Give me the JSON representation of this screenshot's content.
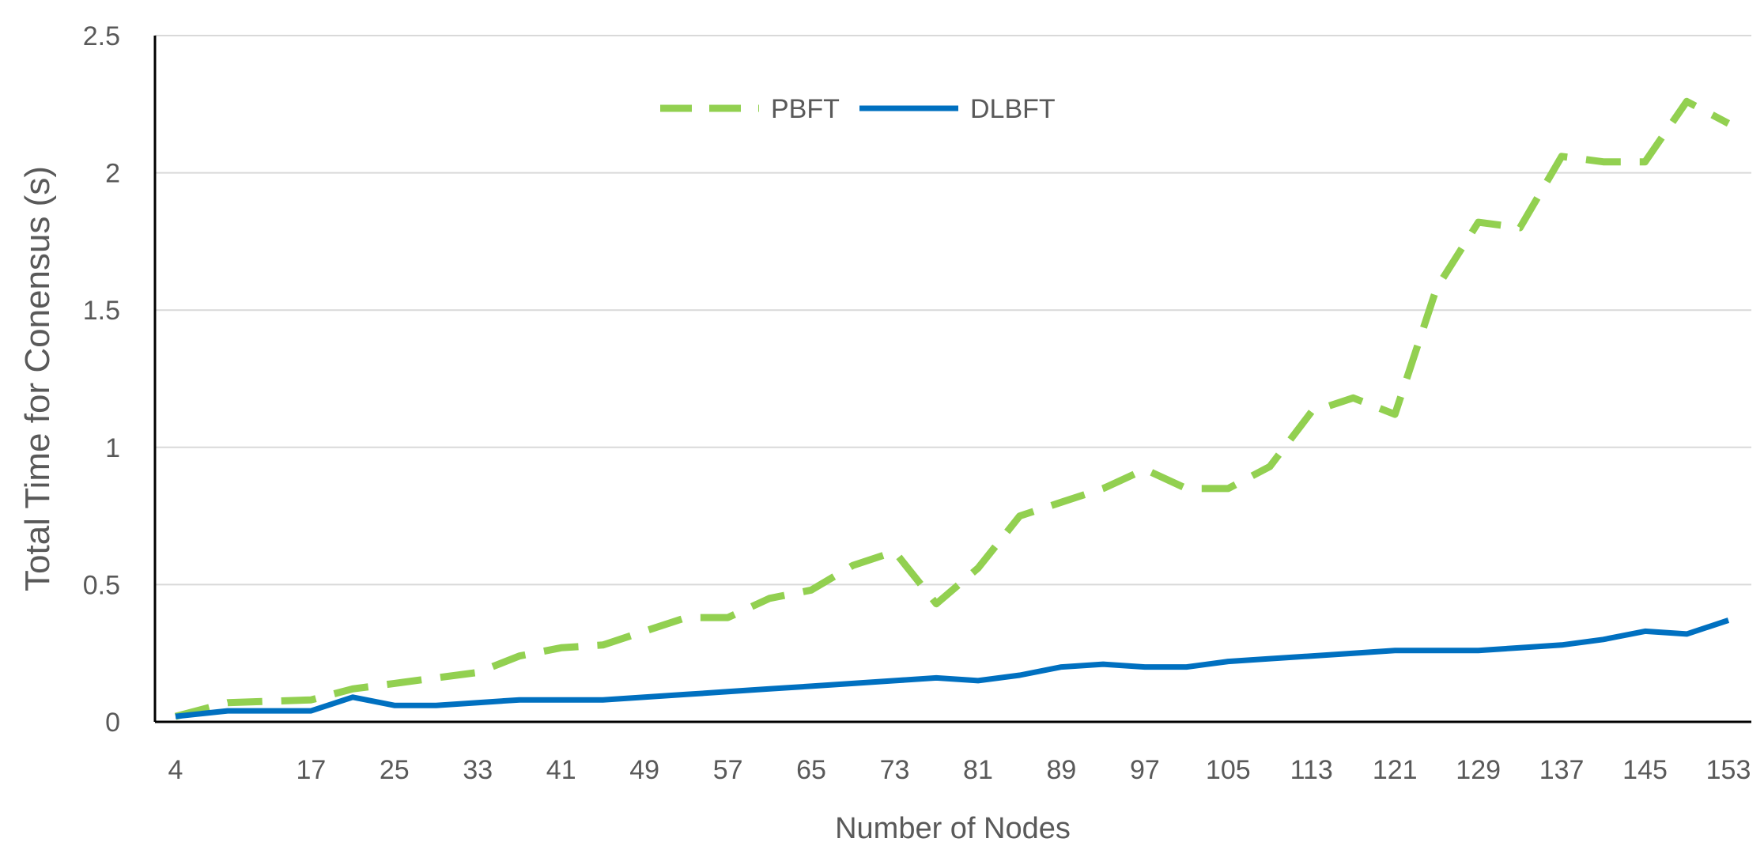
{
  "chart_data": {
    "type": "line",
    "title": "",
    "xlabel": "Number of Nodes",
    "ylabel": "Total  Time for Conensus (s)",
    "ylim": [
      0,
      2.5
    ],
    "yticks": [
      "0",
      "0.5",
      "1",
      "1.5",
      "2",
      "2.5"
    ],
    "xtick_labels": [
      "4",
      "17",
      "25",
      "33",
      "41",
      "49",
      "57",
      "65",
      "73",
      "81",
      "89",
      "97",
      "105",
      "113",
      "121",
      "129",
      "137",
      "145",
      "153"
    ],
    "grid": "horizontal",
    "legend_position": "top-center",
    "x": [
      4,
      9,
      17,
      21,
      25,
      29,
      33,
      37,
      41,
      45,
      49,
      53,
      57,
      61,
      65,
      69,
      73,
      77,
      81,
      85,
      89,
      93,
      97,
      101,
      105,
      109,
      113,
      117,
      121,
      125,
      129,
      133,
      137,
      141,
      145,
      149,
      153
    ],
    "series": [
      {
        "name": "PBFT",
        "color": "#92d050",
        "style": "dashed",
        "values": [
          0.02,
          0.07,
          0.08,
          0.12,
          0.14,
          0.16,
          0.18,
          0.24,
          0.27,
          0.28,
          0.33,
          0.38,
          0.38,
          0.45,
          0.48,
          0.57,
          0.62,
          0.43,
          0.56,
          0.75,
          0.8,
          0.85,
          0.92,
          0.85,
          0.85,
          0.93,
          1.13,
          1.18,
          1.12,
          1.58,
          1.82,
          1.8,
          2.06,
          2.04,
          2.04,
          2.26,
          2.18
        ]
      },
      {
        "name": "DLBFT",
        "color": "#0070c0",
        "style": "solid",
        "values": [
          0.02,
          0.04,
          0.04,
          0.09,
          0.06,
          0.06,
          0.07,
          0.08,
          0.08,
          0.08,
          0.09,
          0.1,
          0.11,
          0.12,
          0.13,
          0.14,
          0.15,
          0.16,
          0.15,
          0.17,
          0.2,
          0.21,
          0.2,
          0.2,
          0.22,
          0.23,
          0.24,
          0.25,
          0.26,
          0.26,
          0.26,
          0.27,
          0.28,
          0.3,
          0.33,
          0.32,
          0.37
        ]
      }
    ]
  }
}
